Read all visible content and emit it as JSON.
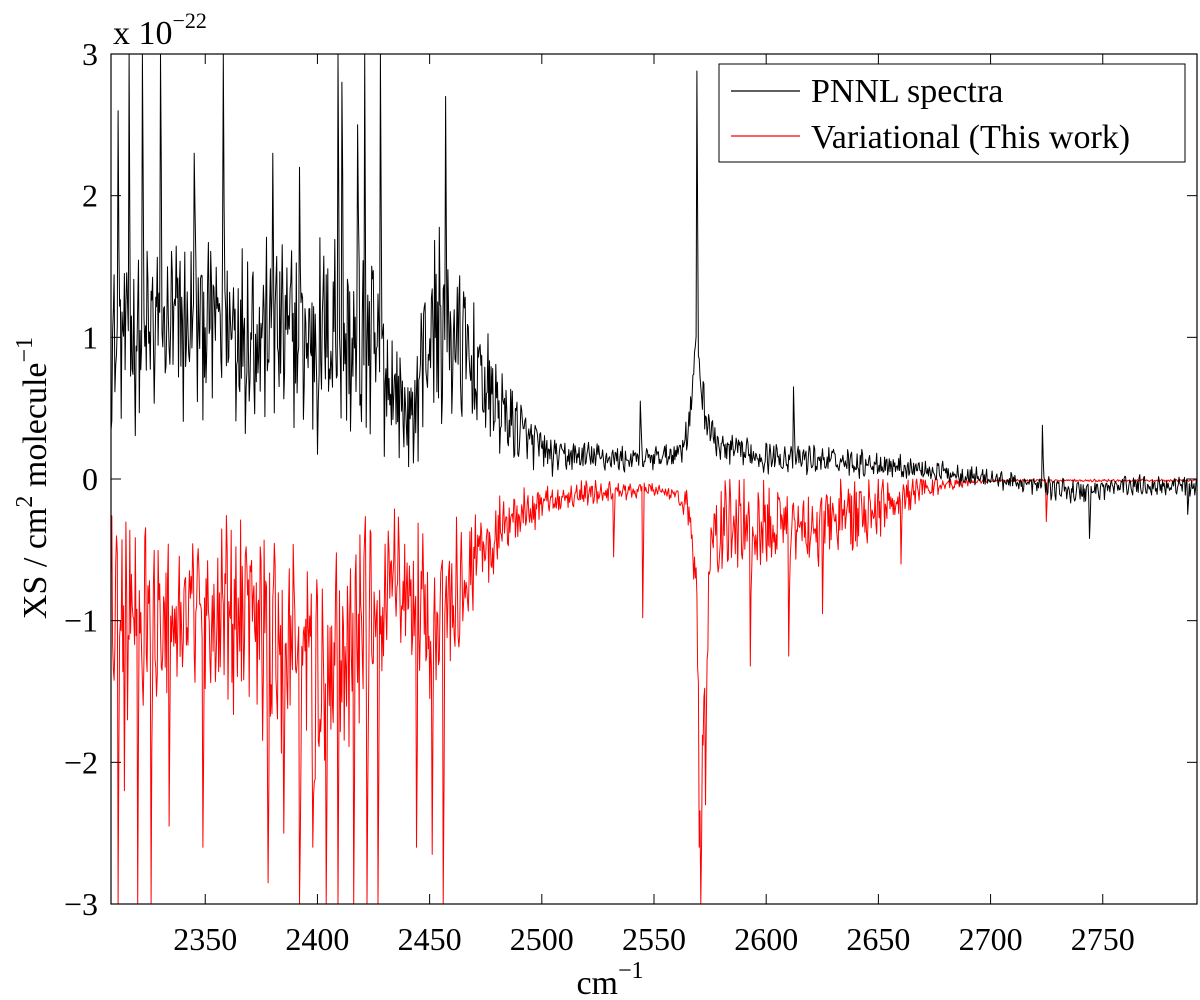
{
  "chart_data": {
    "type": "line",
    "xlabel_base": "cm",
    "xlabel_exp": "−1",
    "ylabel_main": "XS / cm",
    "ylabel_exp1": "2",
    "ylabel_mid": " molecule",
    "ylabel_exp2": "−1",
    "scale_base": "x 10",
    "scale_exp": "−22",
    "xlim": [
      2308,
      2792
    ],
    "ylim": [
      -3,
      3
    ],
    "xticks": [
      2350,
      2400,
      2450,
      2500,
      2550,
      2600,
      2650,
      2700,
      2750
    ],
    "yticks": [
      {
        "value": 3,
        "label": "3"
      },
      {
        "value": 2,
        "label": "2"
      },
      {
        "value": 1,
        "label": "1"
      },
      {
        "value": 0,
        "label": "0"
      },
      {
        "value": -1,
        "label": "−1"
      },
      {
        "value": -2,
        "label": "−2"
      },
      {
        "value": -3,
        "label": "−3"
      }
    ],
    "legend_position": "top-right",
    "series": [
      {
        "name": "PNNL spectra",
        "color": "#000000",
        "x_points": [
          2308,
          2330,
          2360,
          2390,
          2400,
          2408,
          2415,
          2422,
          2430,
          2438,
          2442,
          2448,
          2455,
          2465,
          2475,
          2485,
          2495,
          2505,
          2520,
          2540,
          2555,
          2562,
          2566,
          2569,
          2572,
          2576,
          2580,
          2600,
          2650,
          2700,
          2720,
          2740,
          2760,
          2792
        ],
        "baseline": [
          0.9,
          1.0,
          1.05,
          0.95,
          0.9,
          1.0,
          0.85,
          0.9,
          0.7,
          0.5,
          0.35,
          0.9,
          1.05,
          0.85,
          0.6,
          0.4,
          0.25,
          0.15,
          0.15,
          0.13,
          0.15,
          0.2,
          0.4,
          1.0,
          0.5,
          0.3,
          0.2,
          0.15,
          0.1,
          0.0,
          -0.05,
          -0.1,
          -0.05,
          -0.05
        ],
        "amplitude": [
          0.6,
          0.7,
          0.75,
          0.7,
          0.8,
          0.9,
          0.7,
          0.8,
          0.6,
          0.4,
          0.3,
          0.7,
          0.8,
          0.6,
          0.45,
          0.3,
          0.2,
          0.13,
          0.12,
          0.1,
          0.1,
          0.1,
          0.2,
          0.1,
          0.2,
          0.15,
          0.12,
          0.12,
          0.1,
          0.07,
          0.07,
          0.1,
          0.08,
          0.08
        ],
        "spikes": [
          {
            "x": 2311,
            "y": 2.6
          },
          {
            "x": 2316,
            "y": 3.0
          },
          {
            "x": 2322,
            "y": 3.0
          },
          {
            "x": 2330,
            "y": 3.0
          },
          {
            "x": 2345,
            "y": 2.3
          },
          {
            "x": 2358,
            "y": 3.0
          },
          {
            "x": 2380,
            "y": 2.3
          },
          {
            "x": 2392,
            "y": 2.2
          },
          {
            "x": 2409,
            "y": 3.0
          },
          {
            "x": 2411,
            "y": 2.8
          },
          {
            "x": 2418,
            "y": 2.5
          },
          {
            "x": 2421,
            "y": 3.0
          },
          {
            "x": 2428,
            "y": 3.0
          },
          {
            "x": 2457,
            "y": 2.7
          },
          {
            "x": 2544,
            "y": 0.55
          },
          {
            "x": 2569,
            "y": 2.88
          },
          {
            "x": 2612,
            "y": 0.65
          },
          {
            "x": 2723,
            "y": 0.38
          },
          {
            "x": 2744,
            "y": -0.42
          },
          {
            "x": 2788,
            "y": -0.25
          }
        ]
      },
      {
        "name": "Variational (This work)",
        "color": "#ff0000",
        "x_points": [
          2308,
          2320,
          2340,
          2360,
          2380,
          2400,
          2420,
          2435,
          2442,
          2448,
          2455,
          2465,
          2475,
          2485,
          2495,
          2510,
          2530,
          2550,
          2560,
          2566,
          2569,
          2571,
          2575,
          2580,
          2600,
          2620,
          2650,
          2670,
          2690,
          2700,
          2792
        ],
        "baseline": [
          -0.8,
          -0.9,
          -0.9,
          -0.95,
          -1.1,
          -1.3,
          -1.0,
          -0.6,
          -0.8,
          -1.0,
          -0.9,
          -0.65,
          -0.45,
          -0.3,
          -0.2,
          -0.1,
          -0.08,
          -0.07,
          -0.1,
          -0.2,
          -0.9,
          -2.0,
          -0.5,
          -0.3,
          -0.3,
          -0.3,
          -0.18,
          -0.05,
          -0.02,
          -0.01,
          -0.01
        ],
        "amplitude": [
          0.9,
          0.8,
          0.6,
          0.7,
          0.8,
          0.9,
          0.8,
          0.5,
          0.5,
          0.7,
          0.6,
          0.45,
          0.35,
          0.25,
          0.18,
          0.12,
          0.08,
          0.06,
          0.05,
          0.2,
          0.3,
          0.5,
          0.3,
          0.35,
          0.35,
          0.35,
          0.25,
          0.1,
          0.03,
          0.01,
          0.01
        ],
        "spikes": [
          {
            "x": 2311,
            "y": -3.0
          },
          {
            "x": 2314,
            "y": -2.2
          },
          {
            "x": 2320,
            "y": -3.0
          },
          {
            "x": 2326,
            "y": -3.0
          },
          {
            "x": 2334,
            "y": -2.45
          },
          {
            "x": 2349,
            "y": -2.6
          },
          {
            "x": 2378,
            "y": -2.85
          },
          {
            "x": 2385,
            "y": -2.5
          },
          {
            "x": 2392,
            "y": -3.0
          },
          {
            "x": 2398,
            "y": -2.6
          },
          {
            "x": 2404,
            "y": -3.0
          },
          {
            "x": 2409,
            "y": -3.0
          },
          {
            "x": 2416,
            "y": -3.0
          },
          {
            "x": 2422,
            "y": -3.0
          },
          {
            "x": 2427,
            "y": -3.0
          },
          {
            "x": 2444,
            "y": -2.6
          },
          {
            "x": 2451,
            "y": -2.65
          },
          {
            "x": 2456,
            "y": -3.0
          },
          {
            "x": 2532,
            "y": -0.55
          },
          {
            "x": 2545,
            "y": -0.98
          },
          {
            "x": 2570,
            "y": -2.6
          },
          {
            "x": 2571,
            "y": -3.0
          },
          {
            "x": 2573,
            "y": -2.3
          },
          {
            "x": 2593,
            "y": -1.32
          },
          {
            "x": 2610,
            "y": -1.25
          },
          {
            "x": 2625,
            "y": -0.95
          },
          {
            "x": 2660,
            "y": -0.6
          },
          {
            "x": 2725,
            "y": -0.3
          }
        ]
      }
    ]
  }
}
